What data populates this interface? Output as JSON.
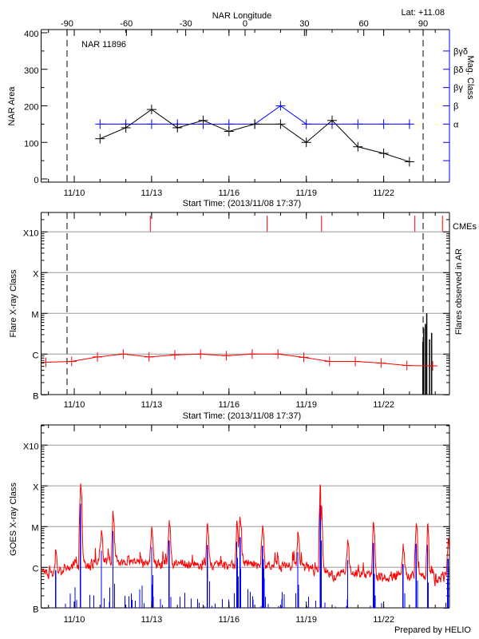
{
  "header": {
    "lat_label": "Lat: +11.08",
    "longitude_axis_title": "NAR Longitude"
  },
  "colors": {
    "area": "#000000",
    "mag_class": "#0000ff",
    "flare_background": "#ff0000",
    "cme": "#ff0000",
    "goes_long": "#ff0000",
    "goes_short": "#0000ff",
    "grid": "#999999",
    "flares": "#000000"
  },
  "time_axis": {
    "start_label": "Start Time: (2013/11/08 17:37)",
    "range_days": [
      8.715,
      24.55
    ],
    "ticks": [
      {
        "day": 10,
        "label": "11/10"
      },
      {
        "day": 13,
        "label": "11/13"
      },
      {
        "day": 16,
        "label": "11/16"
      },
      {
        "day": 19,
        "label": "11/19"
      },
      {
        "day": 22,
        "label": "11/22"
      }
    ]
  },
  "footer": {
    "credit": "Prepared by HELIO"
  },
  "chart_data": [
    {
      "type": "line",
      "title": "NAR 11896",
      "ylabel": "NAR Area",
      "y2label": "Mag. Class",
      "ylim": [
        0,
        400
      ],
      "yticks": [
        0,
        100,
        200,
        300,
        400
      ],
      "limb_days": [
        9.72,
        23.53
      ],
      "longitude_ticks": [
        -90,
        -60,
        -30,
        0,
        30,
        60,
        90
      ],
      "mag_class_ticks": [
        {
          "level": 350,
          "label": "βγδ"
        },
        {
          "level": 300,
          "label": "βδ"
        },
        {
          "level": 250,
          "label": "βγ"
        },
        {
          "level": 200,
          "label": "β"
        },
        {
          "level": 150,
          "label": "α"
        },
        {
          "level": 100,
          "label": ""
        },
        {
          "level": 50,
          "label": ""
        }
      ],
      "series": [
        {
          "name": "NAR Area",
          "x": [
            11,
            12,
            13,
            14,
            15,
            16,
            17,
            18,
            19,
            20,
            21,
            22,
            23
          ],
          "values": [
            110,
            140,
            190,
            140,
            160,
            130,
            150,
            150,
            100,
            160,
            88,
            70,
            47
          ]
        },
        {
          "name": "Mag. Class",
          "x": [
            11,
            12,
            13,
            14,
            15,
            16,
            17,
            18,
            19,
            20,
            21,
            22,
            23
          ],
          "values": [
            "α",
            "α",
            "α",
            "α",
            "α",
            "α",
            "α",
            "β",
            "α",
            "α",
            "α",
            "α",
            "α"
          ]
        }
      ]
    },
    {
      "type": "line",
      "ylabel": "Flare X-ray Class",
      "y2label": "Flares observed in AR",
      "cme_label": "CMEs",
      "class_ticks": [
        {
          "log": -3,
          "label": "X10"
        },
        {
          "log": -4,
          "label": "X"
        },
        {
          "log": -5,
          "label": "M"
        },
        {
          "log": -6,
          "label": "C"
        },
        {
          "log": -7,
          "label": "B"
        }
      ],
      "limb_days": [
        9.72,
        23.53
      ],
      "background": {
        "x": [
          8.9,
          9.9,
          10.9,
          11.9,
          12.9,
          13.9,
          14.9,
          15.9,
          16.9,
          17.9,
          18.9,
          19.9,
          20.9,
          21.9,
          22.9,
          23.9
        ],
        "flux_log10": [
          -6.2,
          -6.18,
          -6.07,
          -6.0,
          -6.07,
          -6.02,
          -6.0,
          -6.04,
          -6.0,
          -6.0,
          -6.08,
          -6.18,
          -6.18,
          -6.22,
          -6.28,
          -6.29
        ]
      },
      "cme_days": [
        12.95,
        17.48,
        19.59,
        23.21,
        24.28
      ],
      "flares": [
        {
          "day": 23.52,
          "flux_log10": -5.7
        },
        {
          "day": 23.55,
          "flux_log10": -5.36
        },
        {
          "day": 23.62,
          "flux_log10": -5.26
        },
        {
          "day": 23.67,
          "flux_log10": -5.0
        },
        {
          "day": 23.78,
          "flux_log10": -5.64
        },
        {
          "day": 23.86,
          "flux_log10": -5.48
        }
      ]
    },
    {
      "type": "line",
      "ylabel": "GOES X-ray Class",
      "class_ticks": [
        {
          "log": -3,
          "label": "X10"
        },
        {
          "log": -4,
          "label": "X"
        },
        {
          "log": -5,
          "label": "M"
        },
        {
          "log": -6,
          "label": "C"
        },
        {
          "log": -7,
          "label": "B"
        }
      ],
      "background_long": {
        "x": [
          8.72,
          9.5,
          10,
          12,
          15,
          17,
          18.5,
          19,
          20,
          21.5,
          22,
          23,
          24,
          24.55
        ],
        "flux_log10": [
          -6.15,
          -6.1,
          -5.95,
          -5.85,
          -5.95,
          -5.9,
          -6.0,
          -6.05,
          -6.15,
          -6.2,
          -6.27,
          -6.15,
          -6.3,
          -6.2
        ]
      },
      "peaks_long": [
        {
          "day": 9.28,
          "flux_log10": -5.57
        },
        {
          "day": 10.24,
          "flux_log10": -3.94
        },
        {
          "day": 11.05,
          "flux_log10": -5.09
        },
        {
          "day": 11.5,
          "flux_log10": -4.61
        },
        {
          "day": 13.0,
          "flux_log10": -5.0
        },
        {
          "day": 13.68,
          "flux_log10": -4.84
        },
        {
          "day": 15.16,
          "flux_log10": -4.95
        },
        {
          "day": 16.3,
          "flux_log10": -4.87
        },
        {
          "day": 16.43,
          "flux_log10": -4.76
        },
        {
          "day": 17.3,
          "flux_log10": -4.97
        },
        {
          "day": 18.67,
          "flux_log10": -5.13
        },
        {
          "day": 19.54,
          "flux_log10": -3.97
        },
        {
          "day": 19.57,
          "flux_log10": -4.84
        },
        {
          "day": 20.6,
          "flux_log10": -5.32
        },
        {
          "day": 21.6,
          "flux_log10": -4.9
        },
        {
          "day": 22.75,
          "flux_log10": -5.42
        },
        {
          "day": 23.26,
          "flux_log10": -4.92
        },
        {
          "day": 23.7,
          "flux_log10": -4.95
        },
        {
          "day": 24.5,
          "flux_log10": -5.29
        }
      ],
      "short_channel_offset_decades": -0.5
    }
  ]
}
